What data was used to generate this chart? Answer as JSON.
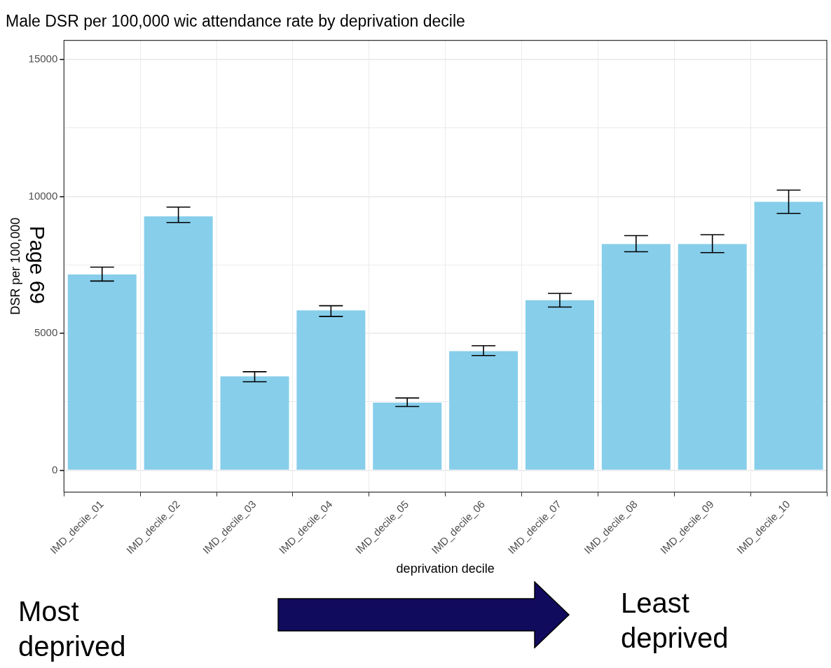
{
  "chart_data": {
    "type": "bar",
    "title": "Male DSR per 100,000 wic attendance rate by deprivation decile",
    "xlabel": "deprivation decile",
    "ylabel": "DSR per 100,000",
    "categories": [
      "IMD_decile_01",
      "IMD_decile_02",
      "IMD_decile_03",
      "IMD_decile_04",
      "IMD_decile_05",
      "IMD_decile_06",
      "IMD_decile_07",
      "IMD_decile_08",
      "IMD_decile_09",
      "IMD_decile_10"
    ],
    "values": [
      7150,
      9270,
      3430,
      5840,
      2470,
      4350,
      6210,
      8260,
      8260,
      9800
    ],
    "errors": [
      [
        6910,
        7420
      ],
      [
        9050,
        9610
      ],
      [
        3230,
        3600
      ],
      [
        5620,
        6010
      ],
      [
        2330,
        2640
      ],
      [
        4190,
        4550
      ],
      [
        5960,
        6460
      ],
      [
        7980,
        8570
      ],
      [
        7950,
        8600
      ],
      [
        9380,
        10230
      ]
    ],
    "color": "#87ceeb",
    "ylim": [
      -800,
      15700
    ],
    "yticks": [
      0,
      {
        "value": 2500,
        "label": null
      },
      5000,
      {
        "value": 7500,
        "label": null
      },
      10000,
      {
        "value": 12500,
        "label": null
      },
      15000
    ],
    "grid": true,
    "annotations": [
      "Page 69",
      "Most deprived",
      "Least deprived"
    ]
  }
}
